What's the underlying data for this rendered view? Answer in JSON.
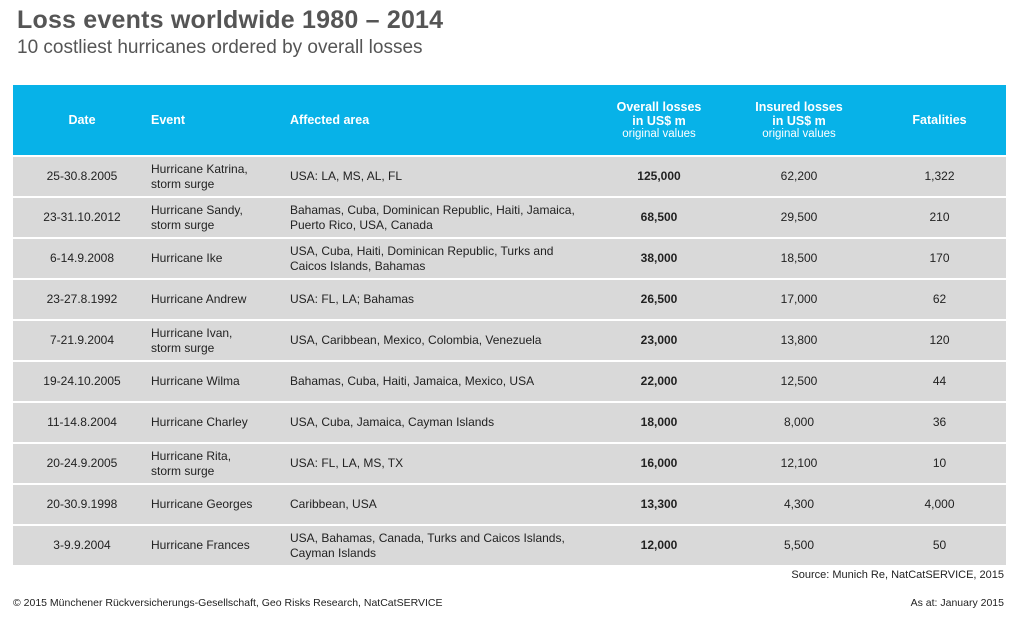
{
  "header": {
    "title": "Loss events worldwide 1980 – 2014",
    "subtitle": "10 costliest hurricanes ordered by overall losses"
  },
  "table": {
    "columns": {
      "date": "Date",
      "event": "Event",
      "area": "Affected area",
      "overall_line1": "Overall losses",
      "overall_line2": "in US$ m",
      "overall_line3": "original values",
      "insured_line1": "Insured losses",
      "insured_line2": "in US$ m",
      "insured_line3": "original values",
      "fatalities": "Fatalities"
    },
    "rows": [
      {
        "date": "25-30.8.2005",
        "event1": "Hurricane Katrina,",
        "event2": "storm surge",
        "area1": "USA: LA, MS, AL, FL",
        "area2": "",
        "overall": "125,000",
        "insured": "62,200",
        "fatalities": "1,322"
      },
      {
        "date": "23-31.10.2012",
        "event1": "Hurricane Sandy,",
        "event2": "storm surge",
        "area1": "Bahamas, Cuba, Dominican Republic, Haiti, Jamaica,",
        "area2": "Puerto Rico, USA, Canada",
        "overall": "68,500",
        "insured": "29,500",
        "fatalities": "210"
      },
      {
        "date": "6-14.9.2008",
        "event1": "Hurricane Ike",
        "event2": "",
        "area1": "USA, Cuba, Haiti, Dominican Republic, Turks and",
        "area2": "Caicos Islands, Bahamas",
        "overall": "38,000",
        "insured": "18,500",
        "fatalities": "170"
      },
      {
        "date": "23-27.8.1992",
        "event1": "Hurricane Andrew",
        "event2": "",
        "area1": "USA: FL, LA; Bahamas",
        "area2": "",
        "overall": "26,500",
        "insured": "17,000",
        "fatalities": "62"
      },
      {
        "date": "7-21.9.2004",
        "event1": "Hurricane Ivan,",
        "event2": "storm surge",
        "area1": "USA, Caribbean, Mexico, Colombia, Venezuela",
        "area2": "",
        "overall": "23,000",
        "insured": "13,800",
        "fatalities": "120"
      },
      {
        "date": "19-24.10.2005",
        "event1": "Hurricane Wilma",
        "event2": "",
        "area1": "Bahamas, Cuba, Haiti, Jamaica, Mexico, USA",
        "area2": "",
        "overall": "22,000",
        "insured": "12,500",
        "fatalities": "44"
      },
      {
        "date": "11-14.8.2004",
        "event1": "Hurricane Charley",
        "event2": "",
        "area1": "USA, Cuba, Jamaica, Cayman Islands",
        "area2": "",
        "overall": "18,000",
        "insured": "8,000",
        "fatalities": "36"
      },
      {
        "date": "20-24.9.2005",
        "event1": "Hurricane Rita,",
        "event2": "storm surge",
        "area1": "USA: FL, LA, MS, TX",
        "area2": "",
        "overall": "16,000",
        "insured": "12,100",
        "fatalities": "10"
      },
      {
        "date": "20-30.9.1998",
        "event1": "Hurricane Georges",
        "event2": "",
        "area1": "Caribbean, USA",
        "area2": "",
        "overall": "13,300",
        "insured": "4,300",
        "fatalities": "4,000"
      },
      {
        "date": "3-9.9.2004",
        "event1": "Hurricane Frances",
        "event2": "",
        "area1": "USA, Bahamas, Canada, Turks and Caicos Islands,",
        "area2": "Cayman Islands",
        "overall": "12,000",
        "insured": "5,500",
        "fatalities": "50"
      }
    ]
  },
  "source": "Source: Munich Re, NatCatSERVICE, 2015",
  "footer": {
    "copyright": "© 2015 Münchener Rückversicherungs-Gesellschaft, Geo Risks Research, NatCatSERVICE",
    "as_at": "As at: January 2015"
  },
  "colors": {
    "header_bg": "#07b2e8",
    "row_bg": "#d9d9d9",
    "title_text": "#555555"
  }
}
